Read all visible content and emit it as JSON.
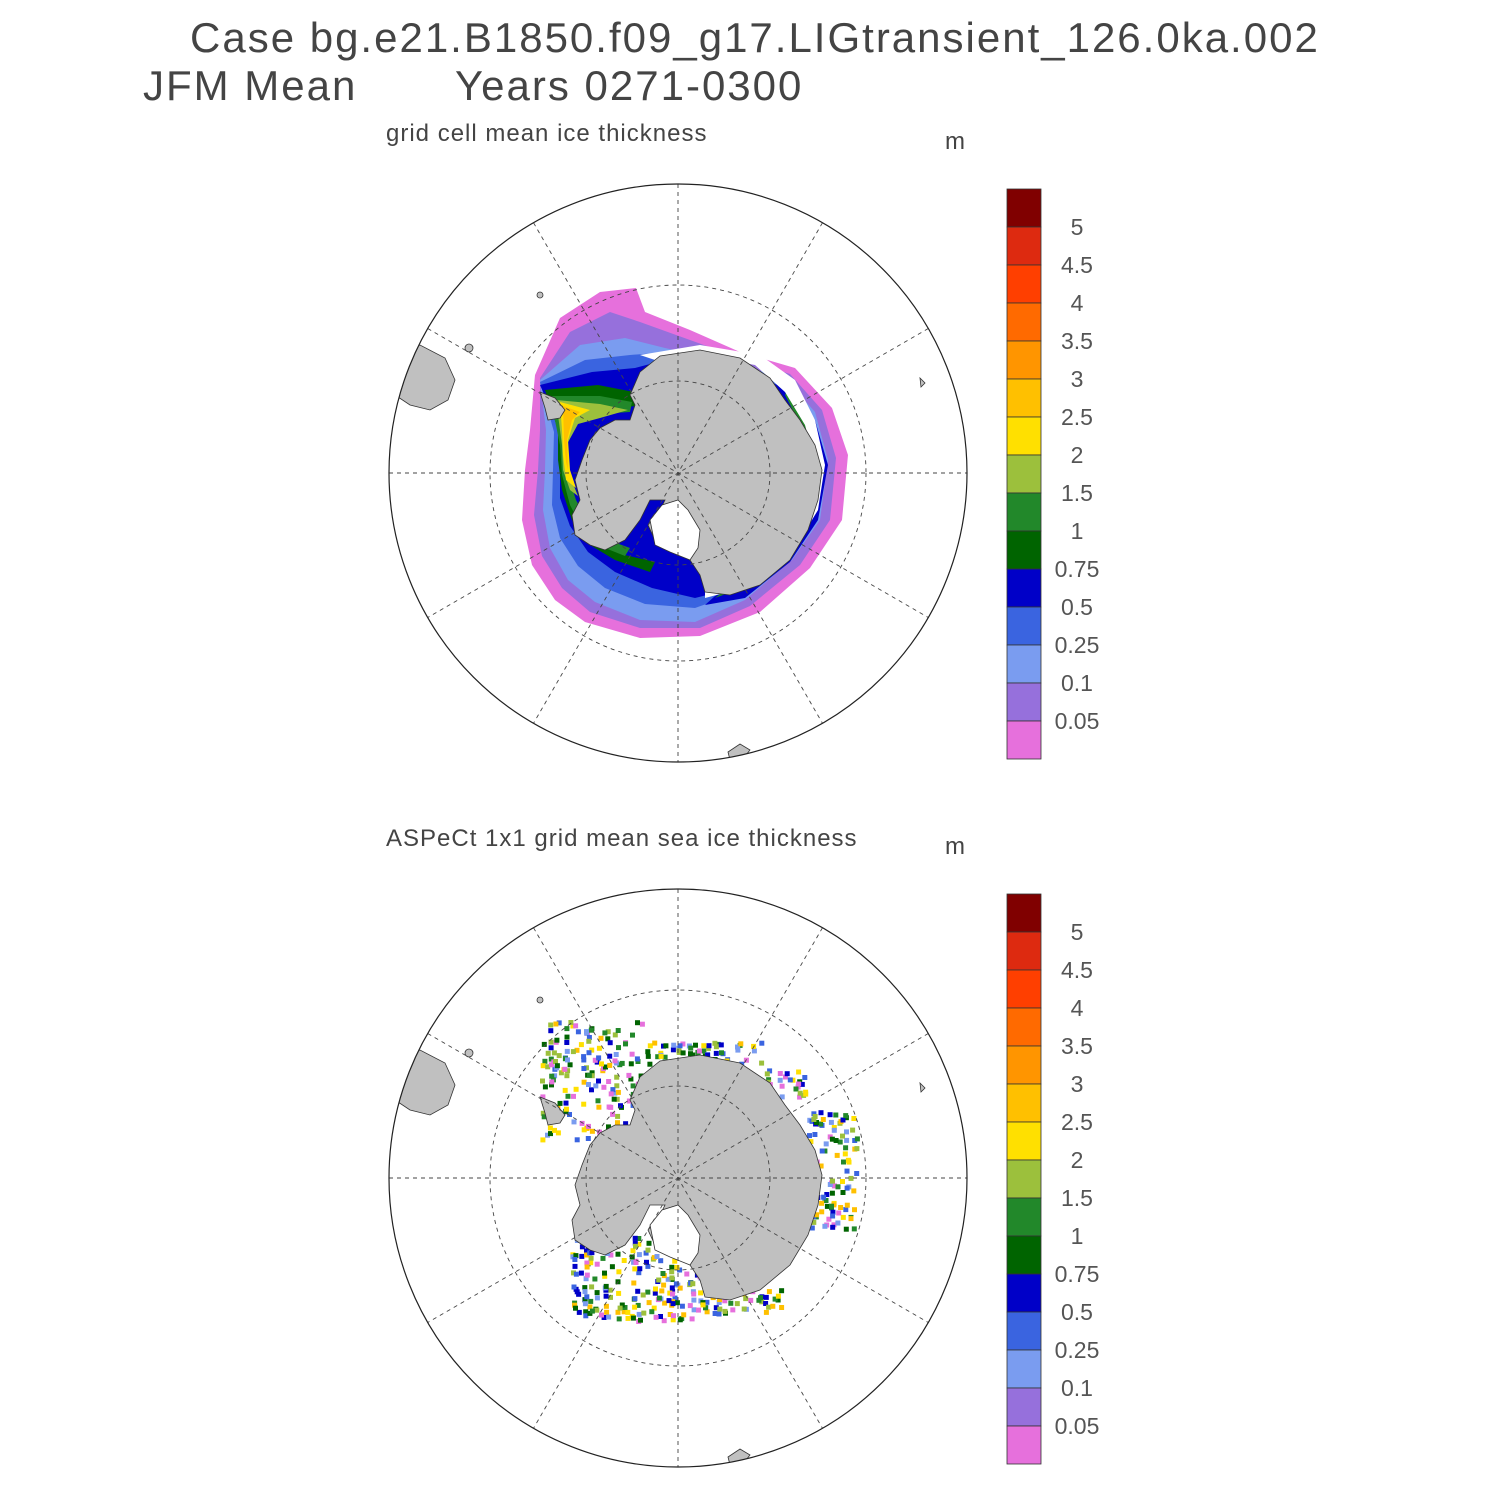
{
  "header": {
    "case_line": "Case bg.e21.B1850.f09_g17.LIGtransient_126.0ka.002",
    "season": "JFM Mean",
    "years": "Years 0271-0300"
  },
  "panels": [
    {
      "title": "grid cell mean ice thickness",
      "unit": "m"
    },
    {
      "title": "ASPeCt 1x1 grid mean sea ice thickness",
      "unit": "m"
    }
  ],
  "colorbar": {
    "levels": [
      "5",
      "4.5",
      "4",
      "3.5",
      "3",
      "2.5",
      "2",
      "1.5",
      "1",
      "0.75",
      "0.5",
      "0.25",
      "0.1",
      "0.05"
    ],
    "colors": [
      "#800000",
      "#dd2a10",
      "#ff3f00",
      "#ff6a00",
      "#ff9500",
      "#ffc000",
      "#ffe000",
      "#9cc03c",
      "#22882a",
      "#006400",
      "#0000c8",
      "#3a64e0",
      "#7a9cf0",
      "#9670dc",
      "#e670dc"
    ]
  },
  "map_colors": {
    "land": "#c0c0c0",
    "ocean": "#ffffff"
  }
}
